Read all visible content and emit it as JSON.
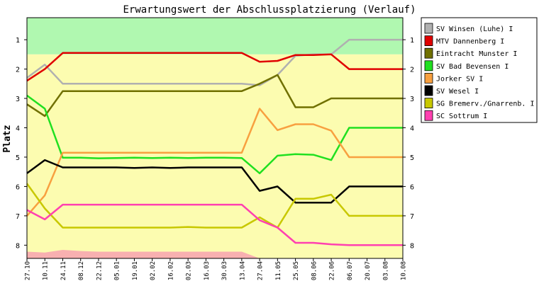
{
  "chart_data": {
    "type": "line",
    "title": "Erwartungswert der Abschlussplatzierung (Verlauf)",
    "xlabel": "",
    "ylabel": "Platz",
    "ylim": [
      0.25,
      8.45
    ],
    "y_ticks": [
      1,
      2,
      3,
      4,
      5,
      6,
      7,
      8
    ],
    "y_inverted": true,
    "grid": false,
    "legend_position": "right",
    "x": [
      "27.10",
      "10.11",
      "24.11",
      "08.12",
      "22.12",
      "05.01",
      "19.01",
      "02.02",
      "16.02",
      "02.03",
      "16.03",
      "30.03",
      "13.04",
      "27.04",
      "11.05",
      "25.05",
      "08.06",
      "22.06",
      "06.07",
      "20.07",
      "03.08",
      "10.08"
    ],
    "background_bands": [
      {
        "from": 0.25,
        "to": 1.5,
        "color": "#b0f8b0"
      },
      {
        "from": 1.5,
        "to": 8.45,
        "color": "#fcfcb0"
      }
    ],
    "relegation_area": {
      "color": "#f8b0b0",
      "values": [
        8.22,
        8.25,
        8.16,
        8.2,
        8.22,
        8.22,
        8.22,
        8.22,
        8.22,
        8.22,
        8.22,
        8.22,
        8.22,
        8.45,
        8.45,
        8.45,
        8.45,
        8.45,
        8.45,
        8.45,
        8.45,
        8.45
      ]
    },
    "series": [
      {
        "name": "SV Winsen (Luhe) I",
        "color": "#b0b0b0",
        "values": [
          2.3,
          1.85,
          2.5,
          2.5,
          2.5,
          2.5,
          2.5,
          2.5,
          2.5,
          2.5,
          2.5,
          2.5,
          2.5,
          2.55,
          2.2,
          1.55,
          1.5,
          1.5,
          1.0,
          1.0,
          1.0,
          1.0
        ]
      },
      {
        "name": "MTV Dannenberg I",
        "color": "#e00000",
        "values": [
          2.4,
          2.0,
          1.45,
          1.45,
          1.45,
          1.45,
          1.45,
          1.45,
          1.45,
          1.45,
          1.45,
          1.45,
          1.45,
          1.75,
          1.72,
          1.52,
          1.52,
          1.5,
          2.0,
          2.0,
          2.0,
          2.0
        ]
      },
      {
        "name": "Eintracht Munster I",
        "color": "#707000",
        "values": [
          3.2,
          3.6,
          2.75,
          2.75,
          2.75,
          2.75,
          2.75,
          2.75,
          2.75,
          2.75,
          2.75,
          2.75,
          2.75,
          2.5,
          2.2,
          3.3,
          3.3,
          3.0,
          3.0,
          3.0,
          3.0,
          3.0
        ]
      },
      {
        "name": "SV Bad Bevensen I",
        "color": "#20e020",
        "values": [
          2.9,
          3.35,
          5.02,
          5.02,
          5.04,
          5.03,
          5.02,
          5.03,
          5.02,
          5.03,
          5.02,
          5.02,
          5.03,
          5.55,
          4.95,
          4.9,
          4.92,
          5.1,
          4.0,
          4.0,
          4.0,
          4.0
        ]
      },
      {
        "name": "Jorker SV I",
        "color": "#f8a040",
        "values": [
          7.0,
          6.3,
          4.85,
          4.85,
          4.85,
          4.85,
          4.85,
          4.85,
          4.85,
          4.85,
          4.85,
          4.85,
          4.85,
          3.35,
          4.08,
          3.88,
          3.88,
          4.1,
          5.0,
          5.0,
          5.0,
          5.0
        ]
      },
      {
        "name": "SV Wesel I",
        "color": "#000000",
        "values": [
          5.55,
          5.1,
          5.35,
          5.35,
          5.35,
          5.35,
          5.37,
          5.35,
          5.37,
          5.35,
          5.35,
          5.35,
          5.35,
          6.15,
          6.0,
          6.55,
          6.55,
          6.55,
          6.0,
          6.0,
          6.0,
          6.0
        ]
      },
      {
        "name": "SG Bremerv./Gnarrenb. I",
        "color": "#c8c800",
        "values": [
          5.9,
          6.75,
          7.4,
          7.4,
          7.4,
          7.4,
          7.4,
          7.4,
          7.4,
          7.38,
          7.4,
          7.4,
          7.4,
          7.05,
          7.4,
          6.42,
          6.42,
          6.28,
          7.0,
          7.0,
          7.0,
          7.0
        ]
      },
      {
        "name": "SC Sottrum I",
        "color": "#ff40b0",
        "values": [
          6.8,
          7.12,
          6.62,
          6.62,
          6.62,
          6.62,
          6.62,
          6.62,
          6.62,
          6.62,
          6.62,
          6.62,
          6.62,
          7.15,
          7.4,
          7.92,
          7.92,
          7.97,
          8.0,
          8.0,
          8.0,
          8.0
        ]
      }
    ]
  }
}
